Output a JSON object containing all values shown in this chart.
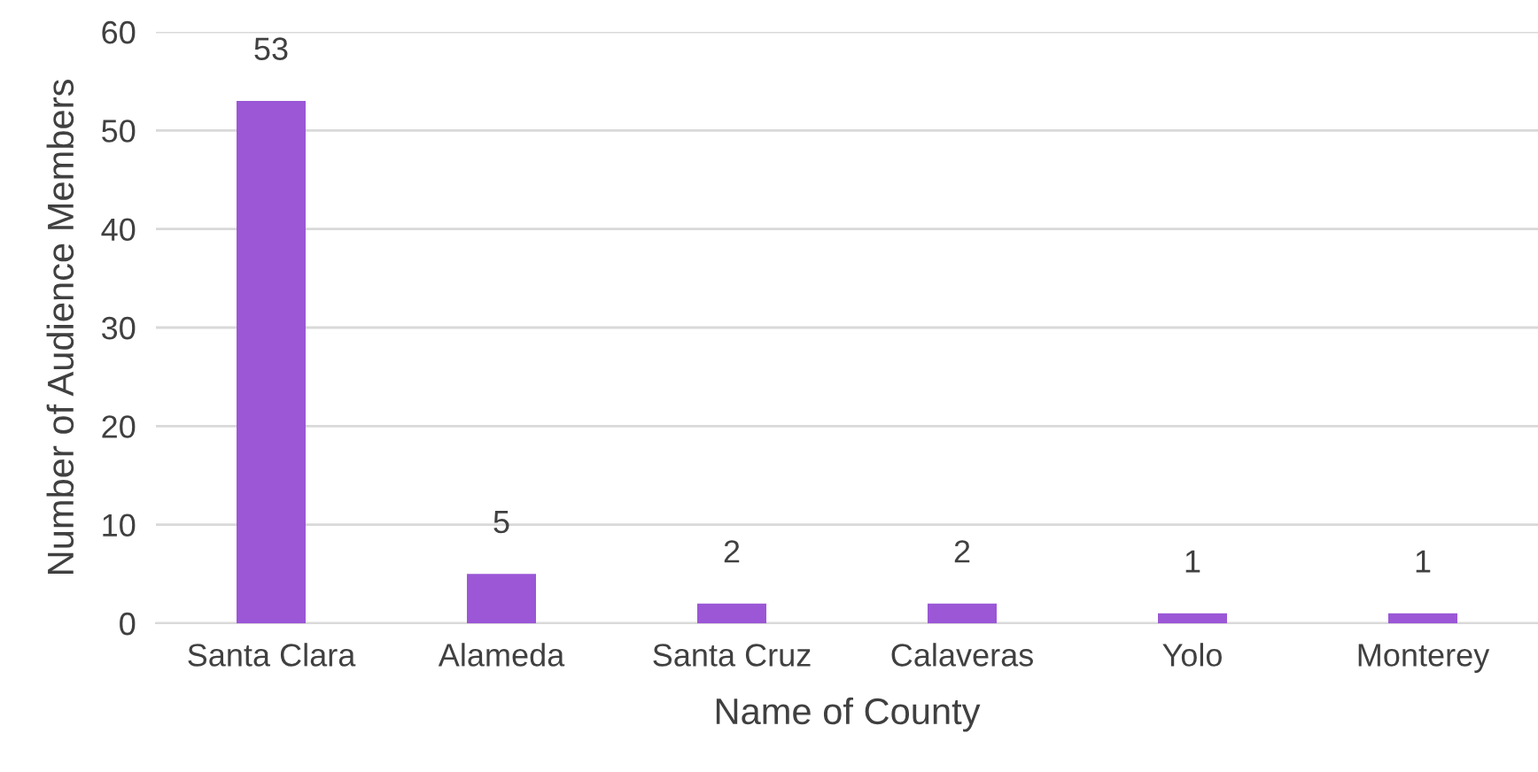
{
  "chart_data": {
    "type": "bar",
    "xlabel": "Name of County",
    "ylabel": "Number of Audience Members",
    "categories": [
      "Santa Clara",
      "Alameda",
      "Santa Cruz",
      "Calaveras",
      "Yolo",
      "Monterey"
    ],
    "values": [
      53,
      5,
      2,
      2,
      1,
      1
    ],
    "color": "#9b57d6",
    "ylim": [
      0,
      60
    ],
    "yticks": [
      0,
      10,
      20,
      30,
      40,
      50,
      60
    ],
    "grid": "y",
    "data_labels": true,
    "legend": false
  }
}
